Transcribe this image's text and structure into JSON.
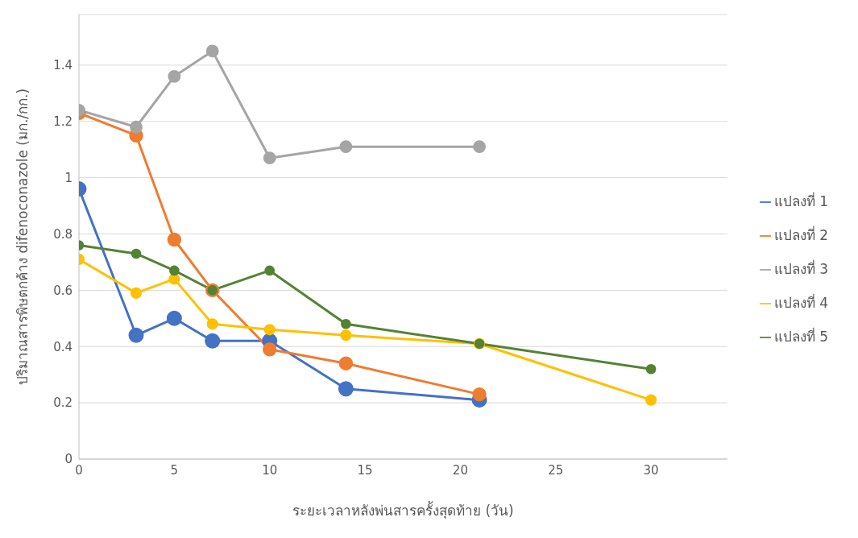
{
  "chart_data": {
    "type": "line",
    "xlabel": "ระยะเวลาหลังพ่นสารครั้งสุดท้าย (วัน)",
    "ylabel": "ปริมาณสารพิษตกค้าง difenoconazole (มก./กก.)",
    "x": [
      0,
      3,
      5,
      7,
      10,
      14,
      21,
      30
    ],
    "series": [
      {
        "name": "แปลงที่ 1",
        "color": "#4472c4",
        "values": [
          0.96,
          0.44,
          0.5,
          0.42,
          0.42,
          0.25,
          0.21,
          null
        ]
      },
      {
        "name": "แปลงที่ 2",
        "color": "#ed7d31",
        "values": [
          1.23,
          1.15,
          0.78,
          0.6,
          0.39,
          0.34,
          0.23,
          null
        ]
      },
      {
        "name": "แปลงที่ 3",
        "color": "#a5a5a5",
        "values": [
          1.24,
          1.18,
          1.36,
          1.45,
          1.07,
          1.11,
          1.11,
          null
        ]
      },
      {
        "name": "แปลงที่ 4",
        "color": "#ffc000",
        "values": [
          0.71,
          0.59,
          0.64,
          0.48,
          0.46,
          0.44,
          0.41,
          0.21
        ]
      },
      {
        "name": "แปลงที่ 5",
        "color": "#548235",
        "values": [
          0.76,
          0.73,
          0.67,
          0.6,
          0.67,
          0.48,
          0.41,
          0.32
        ]
      }
    ],
    "xlim": [
      0,
      34
    ],
    "xticks": [
      0,
      5,
      10,
      15,
      20,
      25,
      30
    ],
    "ylim": [
      0,
      1.58
    ],
    "yticks": [
      0,
      0.2,
      0.4,
      0.6,
      0.8,
      1,
      1.2,
      1.4
    ],
    "grid": "y",
    "legend": "right",
    "marker": "circle",
    "line_style": "solid"
  }
}
